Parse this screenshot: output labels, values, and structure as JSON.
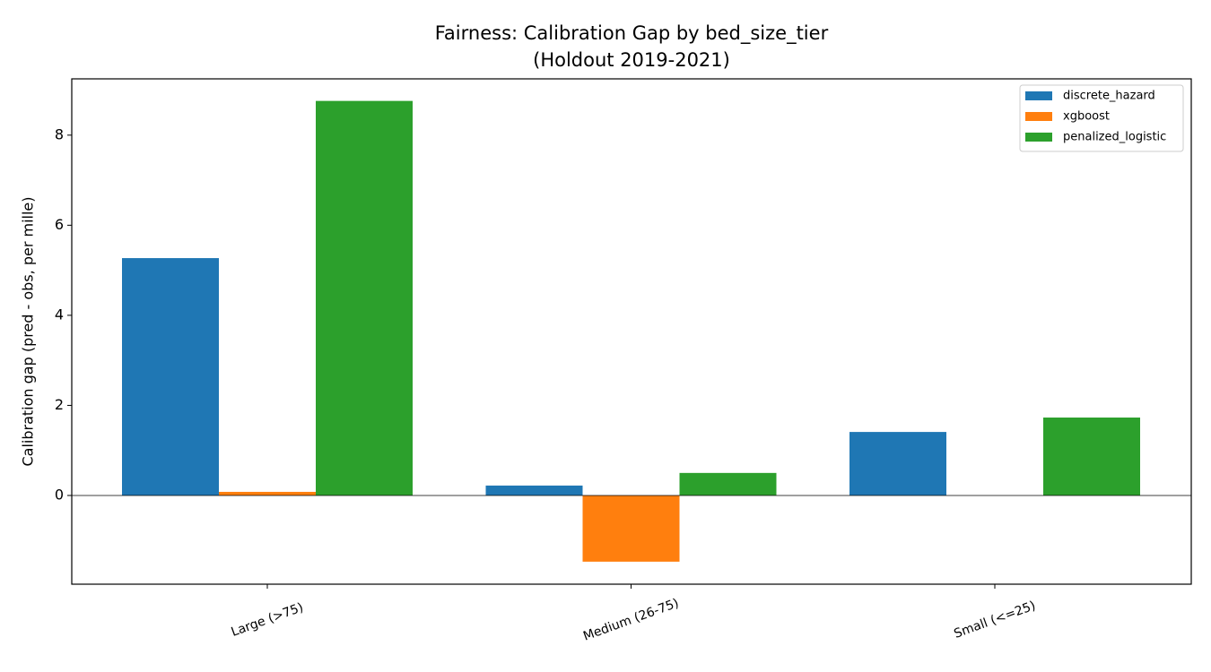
{
  "chart_data": {
    "type": "bar",
    "title": "Fairness: Calibration Gap by bed_size_tier",
    "subtitle": "(Holdout 2019-2021)",
    "y_label": "Calibration gap (pred - obs, per mille)",
    "categories": [
      "Large (>75)",
      "Medium (26-75)",
      "Small (<=25)"
    ],
    "series": [
      {
        "name": "discrete_hazard",
        "color": "#1f77b4",
        "values": [
          5.27,
          0.22,
          1.41
        ]
      },
      {
        "name": "xgboost",
        "color": "#ff7f0e",
        "values": [
          0.08,
          -1.47,
          0.0
        ]
      },
      {
        "name": "penalized_logistic",
        "color": "#2ca02c",
        "values": [
          8.76,
          0.5,
          1.73
        ]
      }
    ],
    "ylim": [
      -1.97,
      9.25
    ],
    "yticks": [
      0,
      2,
      4,
      6,
      8
    ],
    "grid": false,
    "legend": "upper right"
  }
}
